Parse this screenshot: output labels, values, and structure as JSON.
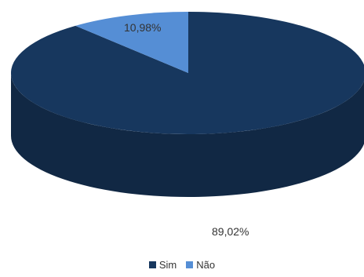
{
  "chart_data": {
    "type": "pie",
    "three_d": true,
    "categories": [
      "Sim",
      "Não"
    ],
    "values": [
      89.02,
      10.98
    ],
    "data_labels": [
      "89,02%",
      "10,98%"
    ],
    "colors": [
      "#17375e",
      "#558ed5"
    ],
    "legend": "bottom"
  }
}
